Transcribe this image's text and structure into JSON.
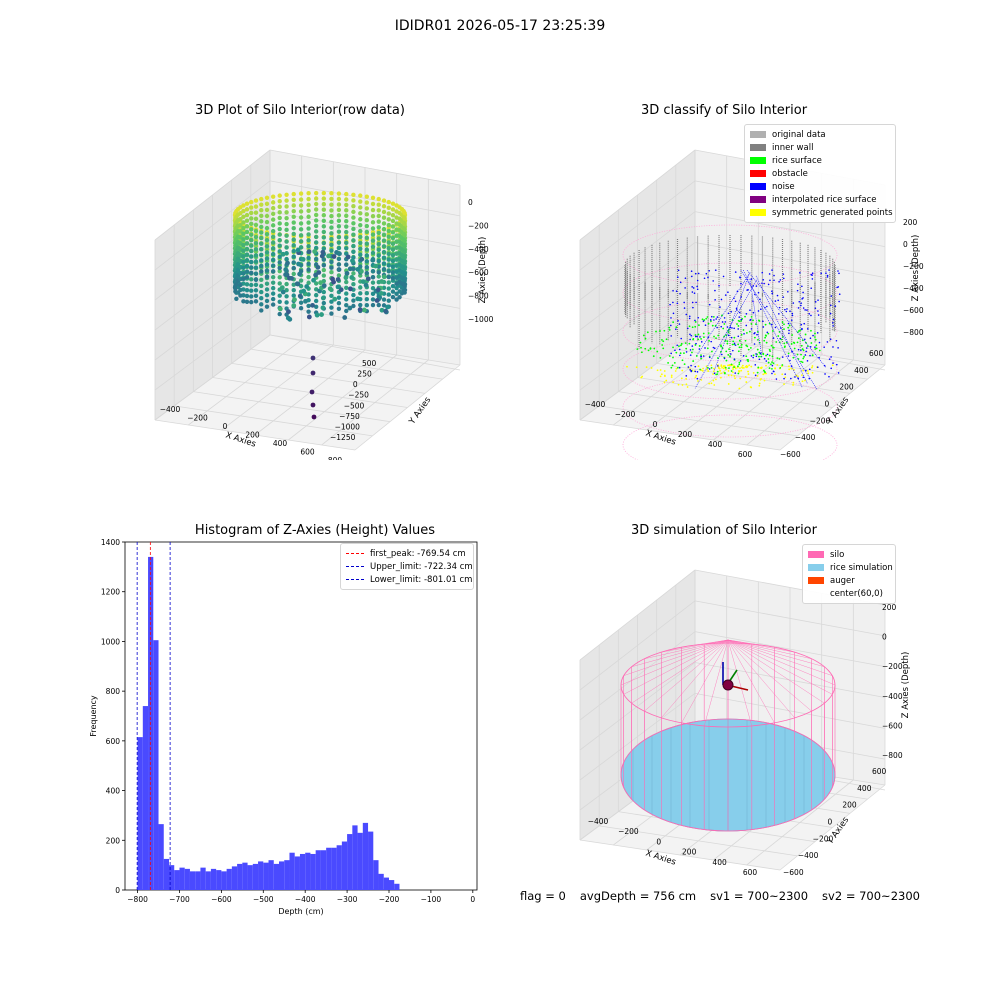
{
  "suptitle": "IDIDR01 2026-05-17 23:25:39",
  "footer": {
    "flag": "flag = 0",
    "avg_depth": "avgDepth = 756 cm",
    "sv1": "sv1 = 700~2300",
    "sv2": "sv2 = 700~2300"
  },
  "colors": {
    "raw_low": "#440154",
    "raw_mid": "#21918c",
    "raw_high": "#fde725",
    "original_data": "#b0b0b0",
    "inner_wall": "#808080",
    "rice_surface": "#00ff00",
    "obstacle": "#ff0000",
    "noise": "#0000ff",
    "interpolated": "#800080",
    "symmetric": "#ffff00",
    "silo": "#ff69b4",
    "rice_sim": "#87ceeb",
    "auger": "#ff4500",
    "hist_bar": "#4a4aff",
    "peak_line": "#ff0000",
    "limit_line": "#0000cc"
  },
  "chart_data": [
    {
      "type": "scatter",
      "projection": "3d",
      "title": "3D Plot of Silo Interior(row data)",
      "xlabel": "X Axies",
      "ylabel": "Y Axies",
      "zlabel": "Z Axies (Depth)",
      "x_ticks": [
        "−400",
        "−200",
        "0",
        "200",
        "400",
        "600",
        "800"
      ],
      "y_ticks": [
        "500",
        "250",
        "0",
        "−250",
        "−500",
        "−750",
        "−1000",
        "−1250"
      ],
      "z_ticks": [
        "0",
        "−200",
        "−400",
        "−600",
        "−800",
        "−1000"
      ],
      "colormap": "viridis"
    },
    {
      "type": "scatter",
      "projection": "3d",
      "title": "3D classify of Silo Interior",
      "xlabel": "X Axies",
      "ylabel": "Y Axies",
      "zlabel": "Z Axies (Depth)",
      "x_ticks": [
        "−400",
        "−200",
        "0",
        "200",
        "400",
        "600"
      ],
      "y_ticks": [
        "600",
        "400",
        "200",
        "0",
        "−200",
        "−400",
        "−600"
      ],
      "z_ticks": [
        "200",
        "0",
        "−200",
        "−400",
        "−600",
        "−800"
      ],
      "legend": [
        {
          "label": "original data",
          "color": "#b0b0b0"
        },
        {
          "label": "inner wall",
          "color": "#808080"
        },
        {
          "label": "rice surface",
          "color": "#00ff00"
        },
        {
          "label": "obstacle",
          "color": "#ff0000"
        },
        {
          "label": "noise",
          "color": "#0000ff"
        },
        {
          "label": "interpolated rice surface",
          "color": "#800080"
        },
        {
          "label": "symmetric generated points",
          "color": "#ffff00"
        }
      ]
    },
    {
      "type": "bar",
      "title": "Histogram of Z-Axies (Height) Values",
      "xlabel": "Depth (cm)",
      "ylabel": "Frequency",
      "xlim": [
        -830,
        10
      ],
      "ylim": [
        0,
        1400
      ],
      "x_ticks": [
        -800,
        -700,
        -600,
        -500,
        -400,
        -300,
        -200,
        -100,
        0
      ],
      "y_ticks": [
        0,
        200,
        400,
        600,
        800,
        1000,
        1200,
        1400
      ],
      "bin_start": -800,
      "bin_width": 12.5,
      "values": [
        615,
        740,
        1340,
        1005,
        265,
        125,
        100,
        80,
        90,
        85,
        75,
        75,
        90,
        75,
        85,
        80,
        75,
        85,
        95,
        105,
        110,
        100,
        105,
        115,
        110,
        120,
        105,
        115,
        120,
        150,
        135,
        145,
        150,
        145,
        160,
        160,
        170,
        170,
        180,
        195,
        225,
        260,
        230,
        270,
        235,
        120,
        65,
        50,
        40,
        25
      ],
      "vlines": [
        {
          "label": "first_peak: -769.54 cm",
          "x": -769.54,
          "style": "peak"
        },
        {
          "label": "Upper_limit: -722.34 cm",
          "x": -722.34,
          "style": "limit"
        },
        {
          "label": "Lower_limit: -801.01 cm",
          "x": -801.01,
          "style": "limit"
        }
      ],
      "legend_position": "top-right"
    },
    {
      "type": "scatter",
      "projection": "3d",
      "title": "3D simulation of Silo Interior",
      "xlabel": "X Axies",
      "ylabel": "Y Axies",
      "zlabel": "Z Axies (Depth)",
      "x_ticks": [
        "−400",
        "−200",
        "0",
        "200",
        "400",
        "600"
      ],
      "y_ticks": [
        "600",
        "400",
        "200",
        "0",
        "−200",
        "−400",
        "−600"
      ],
      "z_ticks": [
        "200",
        "0",
        "−200",
        "−400",
        "−600",
        "−800"
      ],
      "legend": [
        {
          "label": "silo",
          "color": "#ff69b4"
        },
        {
          "label": "rice simulation",
          "color": "#87ceeb"
        },
        {
          "label": "auger",
          "color": "#ff4500"
        },
        {
          "label": "center(60,0)",
          "color": ""
        }
      ]
    }
  ]
}
